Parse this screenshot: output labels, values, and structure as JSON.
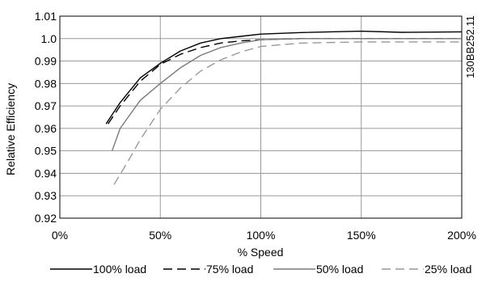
{
  "chart_data": {
    "type": "line",
    "title": "",
    "xlabel": "% Speed",
    "ylabel": "Relative Efficiency",
    "xlim": [
      0,
      200
    ],
    "ylim": [
      0.92,
      1.01
    ],
    "x_ticks": [
      0,
      50,
      100,
      150,
      200
    ],
    "x_tick_labels": [
      "0%",
      "50%",
      "100%",
      "150%",
      "200%"
    ],
    "y_ticks": [
      0.92,
      0.93,
      0.94,
      0.95,
      0.96,
      0.97,
      0.98,
      0.99,
      1.0,
      1.01
    ],
    "y_tick_labels": [
      "0.92",
      "0.93",
      "0.94",
      "0.95",
      "0.96",
      "0.97",
      "0.98",
      "0.99",
      "1.0",
      "1.01"
    ],
    "grid": true,
    "legend_position": "bottom",
    "series": [
      {
        "name": "100% load",
        "color": "#000000",
        "dash": "solid",
        "x": [
          23,
          30,
          40,
          50,
          60,
          70,
          80,
          90,
          100,
          120,
          150,
          170,
          200
        ],
        "y": [
          0.962,
          0.9715,
          0.9825,
          0.989,
          0.9945,
          0.998,
          1.0,
          1.001,
          1.002,
          1.0027,
          1.0033,
          1.0028,
          1.003
        ]
      },
      {
        "name": "75% load",
        "color": "#000000",
        "dash": "dashed",
        "x": [
          24,
          30,
          40,
          50,
          60,
          70,
          80,
          90,
          100,
          120,
          150,
          170,
          200
        ],
        "y": [
          0.962,
          0.97,
          0.981,
          0.9885,
          0.993,
          0.996,
          0.998,
          0.999,
          0.9995,
          1.0,
          1.0,
          1.0,
          1.0
        ]
      },
      {
        "name": "50% load",
        "color": "#7a7a7a",
        "dash": "solid",
        "x": [
          26,
          30,
          40,
          50,
          60,
          70,
          80,
          90,
          100,
          120,
          150,
          170,
          200
        ],
        "y": [
          0.95,
          0.96,
          0.9725,
          0.98,
          0.987,
          0.9925,
          0.996,
          0.998,
          0.9995,
          1.0,
          1.0,
          1.0,
          1.0
        ]
      },
      {
        "name": "25% load",
        "color": "#999999",
        "dash": "dashed",
        "x": [
          27,
          35,
          40,
          50,
          60,
          70,
          80,
          90,
          100,
          120,
          150,
          170,
          200
        ],
        "y": [
          0.935,
          0.947,
          0.955,
          0.9685,
          0.978,
          0.9855,
          0.9905,
          0.994,
          0.9965,
          0.998,
          0.9985,
          0.9985,
          0.9985
        ]
      }
    ]
  },
  "annotation": {
    "doc_code": "130BB252.11"
  }
}
